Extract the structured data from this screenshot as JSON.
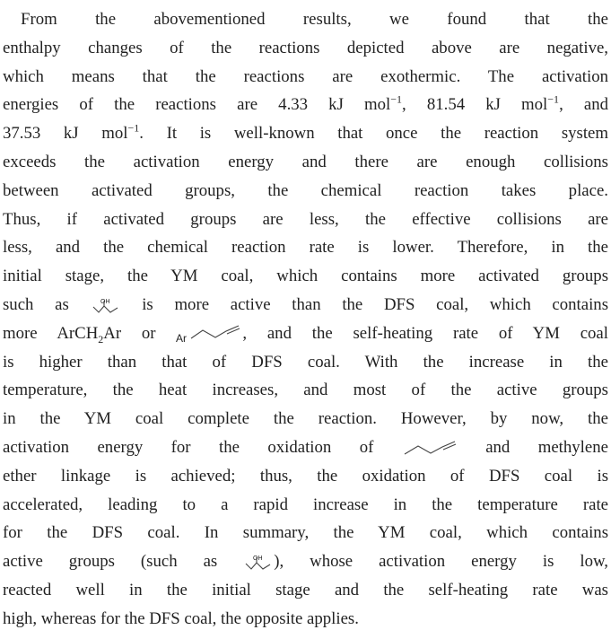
{
  "lines": [
    [
      "From the abovementioned results, we found that the"
    ],
    [
      "enthalpy changes of the reactions depicted above are negative,"
    ],
    [
      "which means that the reactions are exothermic. The activation"
    ],
    [
      "energies of the reactions are 4.33 kJ mol",
      "−1",
      ", 81.54 kJ mol",
      "−1",
      ", and"
    ],
    [
      "37.53 kJ mol",
      "−1",
      ". It is well-known that once the reaction system"
    ],
    [
      "exceeds the activation energy and there are enough collisions"
    ],
    [
      "between activated groups, the chemical reaction takes place."
    ],
    [
      "Thus, if activated groups are less, the effective collisions are"
    ],
    [
      "less, and the chemical reaction rate is lower. Therefore, in the"
    ],
    [
      "initial stage, the YM coal, which contains more activated groups"
    ],
    [
      "such as",
      "OH",
      "is more active than the DFS coal, which contains"
    ],
    [
      "more ArCH",
      "2",
      "Ar or",
      "Ar",
      ", and the self-heating rate of YM coal"
    ],
    [
      "is higher than that of DFS coal. With the increase in the"
    ],
    [
      "temperature, the heat increases, and most of the active groups"
    ],
    [
      "in the YM coal complete the reaction. However, by now, the"
    ],
    [
      "activation energy for the oxidation of",
      "and methylene"
    ],
    [
      "ether linkage is achieved; thus, the oxidation of DFS coal is"
    ],
    [
      "accelerated, leading to a rapid increase in the temperature rate"
    ],
    [
      "for the DFS coal. In summary, the YM coal, which contains"
    ],
    [
      "active groups (such as",
      "OH",
      "), whose activation energy is low,"
    ],
    [
      "reacted well in the initial stage and the self-heating rate was"
    ],
    [
      "high, whereas for the DFS coal, the opposite applies."
    ]
  ]
}
